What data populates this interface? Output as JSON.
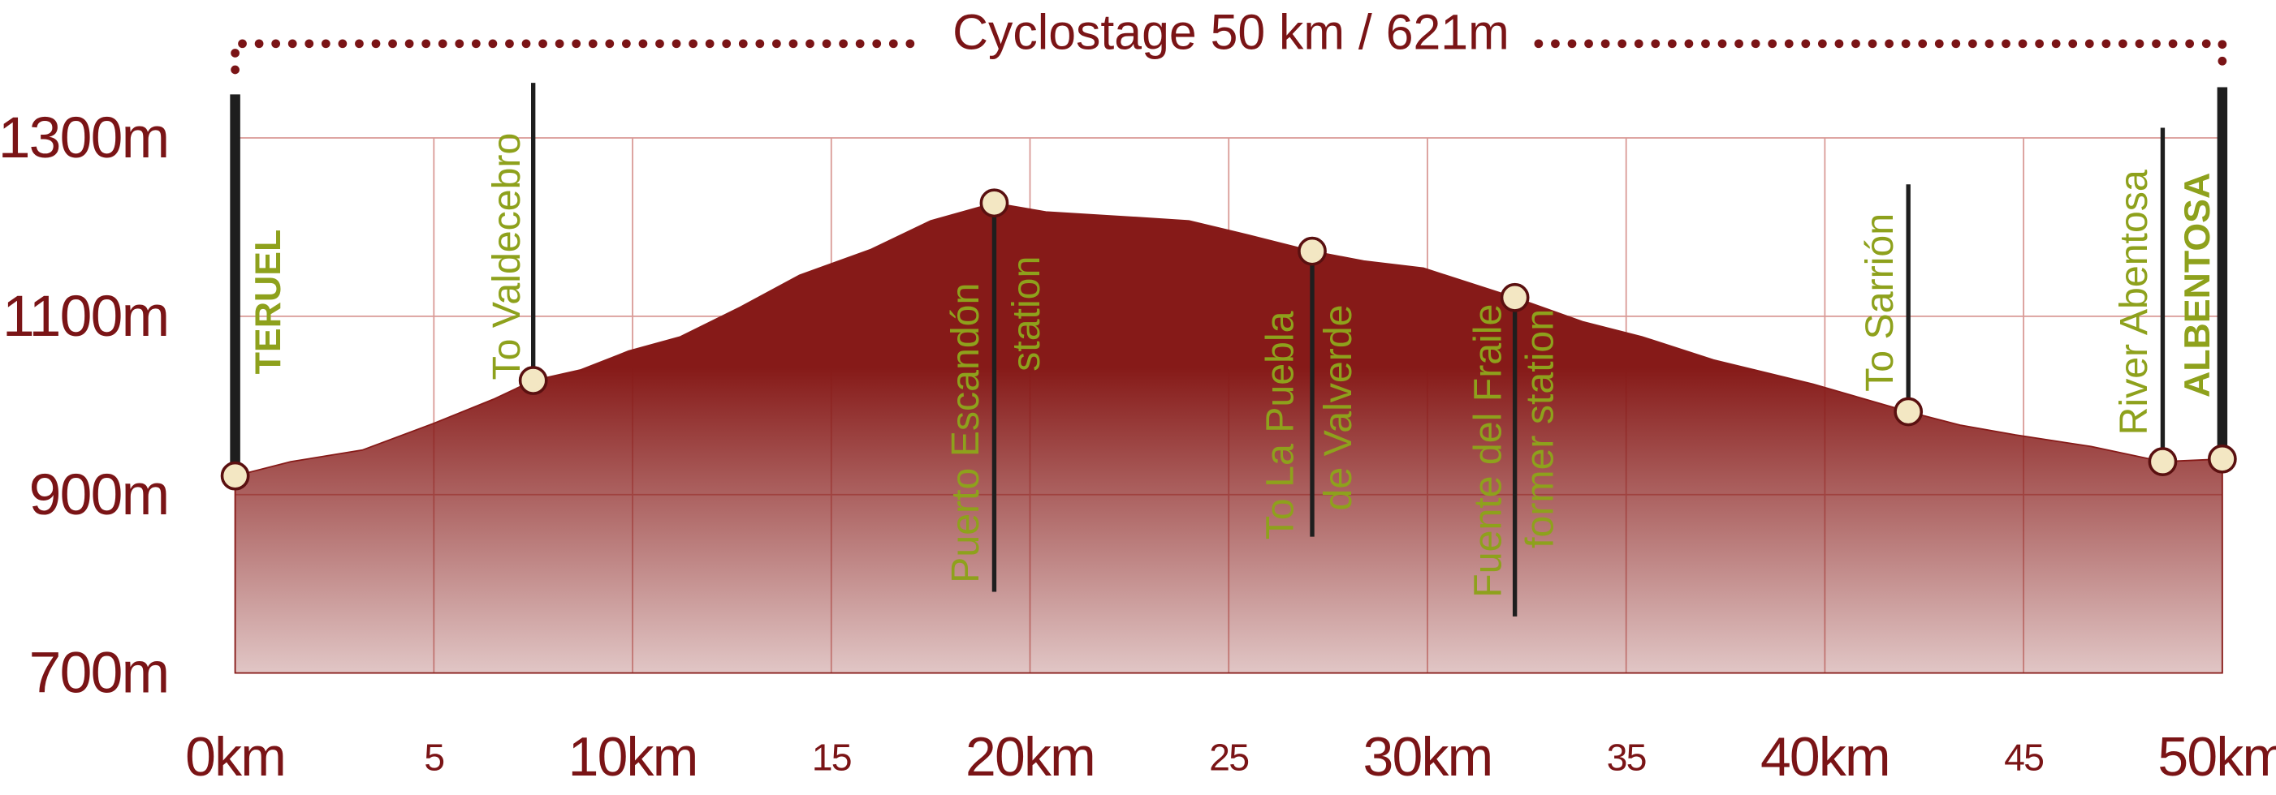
{
  "chart_data": {
    "type": "area",
    "title": "Cyclostage 50 km / 621m",
    "x": [
      0,
      1.4,
      3.2,
      5.0,
      6.5,
      7.5,
      8.7,
      9.9,
      11.2,
      12.7,
      14.2,
      16.0,
      17.5,
      19.1,
      20.4,
      22.6,
      24.0,
      25.5,
      27.1,
      28.4,
      29.9,
      32.2,
      33.9,
      35.4,
      37.2,
      39.7,
      42.1,
      43.4,
      44.8,
      46.7,
      48.5,
      50
    ],
    "series": [
      {
        "color": "#861a18",
        "values": [
          921,
          937,
          950,
          980,
          1007,
          1028,
          1040,
          1061,
          1077,
          1110,
          1146,
          1175,
          1207,
          1227,
          1217,
          1211,
          1207,
          1191,
          1173,
          1162,
          1154,
          1121,
          1094,
          1077,
          1051,
          1024,
          993,
          978,
          967,
          954,
          937,
          940
        ]
      }
    ],
    "xlim": [
      0,
      50
    ],
    "xticks": [
      {
        "value": 0,
        "label": "0km"
      },
      5,
      {
        "value": 10,
        "label": "10km"
      },
      15,
      {
        "value": 20,
        "label": "20km"
      },
      25,
      {
        "value": 30,
        "label": "30km"
      },
      35,
      {
        "value": 40,
        "label": "40km"
      },
      45,
      {
        "value": 50,
        "label": "50km"
      }
    ],
    "ylim": [
      700,
      1300
    ],
    "yticks": [
      {
        "value": 700,
        "label": "700m"
      },
      {
        "value": 900,
        "label": "900m"
      },
      {
        "value": 1100,
        "label": "1100m"
      },
      {
        "value": 1300,
        "label": "1300m"
      }
    ],
    "grid": true,
    "waypoints": [
      {
        "label": [
          "TERUEL"
        ],
        "x": 0,
        "y": 921
      },
      {
        "label": [
          "To Valdecebro"
        ],
        "x": 7.5,
        "y": 1028
      },
      {
        "label": [
          "Puerto Escandón",
          "station"
        ],
        "x": 19.1,
        "y": 1227
      },
      {
        "label": [
          "To La Puebla",
          "de Valverde"
        ],
        "x": 27.1,
        "y": 1173
      },
      {
        "label": [
          "Fuente del Fraile",
          "former station"
        ],
        "x": 32.2,
        "y": 1121
      },
      {
        "label": [
          "To Sarrión"
        ],
        "x": 42.1,
        "y": 993
      },
      {
        "label": [
          "River Abentosa"
        ],
        "x": 48.5,
        "y": 937
      },
      {
        "label": [
          "ALBENTOSA"
        ],
        "x": 50,
        "y": 940
      }
    ]
  }
}
